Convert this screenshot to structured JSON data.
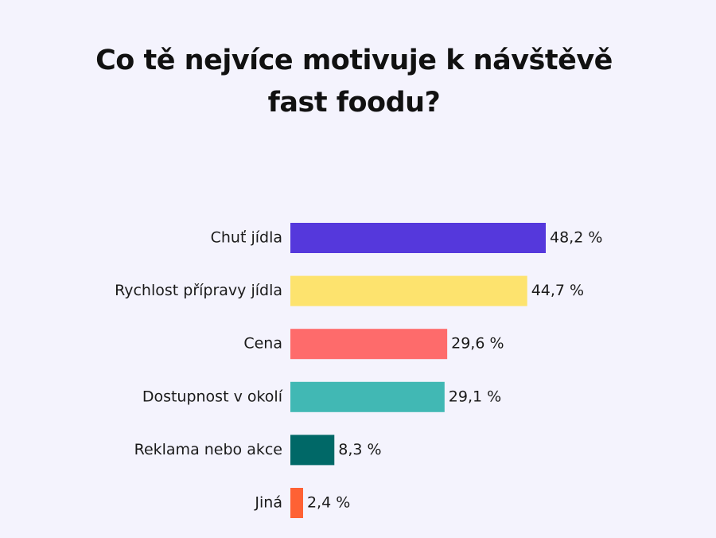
{
  "chart_data": {
    "type": "hbar",
    "title": "Co tě nejvíce motivuje k návštěvě fast foodu?",
    "categories": [
      "Chuť jídla",
      "Rychlost přípravy jídla",
      "Cena",
      "Dostupnost v okolí",
      "Reklama nebo akce",
      "Jiná"
    ],
    "values": [
      48.2,
      44.7,
      29.6,
      29.1,
      8.3,
      2.4
    ],
    "value_labels": [
      "48,2 %",
      "44,7 %",
      "29,6 %",
      "29,1 %",
      "8,3 %",
      "2,4 %"
    ],
    "colors": [
      "#5538dc",
      "#fde36e",
      "#fe6b6b",
      "#41b8b4",
      "#006867",
      "#fe6134"
    ]
  }
}
